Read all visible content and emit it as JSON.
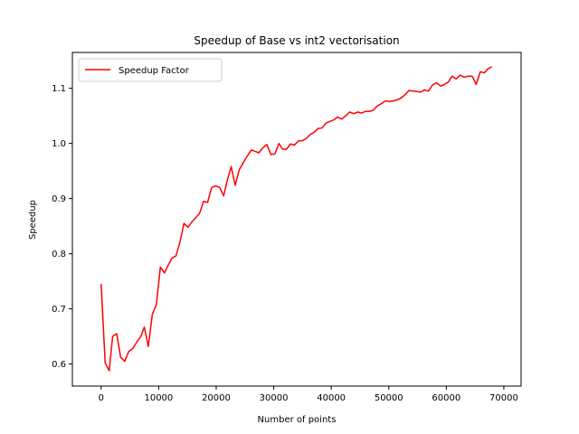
{
  "chart_data": {
    "type": "line",
    "title": "Speedup of Base vs int2 vectorisation",
    "xlabel": "Number of points",
    "ylabel": "Speedup",
    "xlim": [
      -5000,
      73000
    ],
    "ylim": [
      0.56,
      1.165
    ],
    "xticks": [
      0,
      10000,
      20000,
      30000,
      40000,
      50000,
      60000,
      70000
    ],
    "yticks": [
      0.6,
      0.7,
      0.8,
      0.9,
      1.0,
      1.1
    ],
    "ytick_labels": [
      "0.6",
      "0.7",
      "0.8",
      "0.9",
      "1.0",
      "1.1"
    ],
    "grid": false,
    "legend_position": "upper left",
    "series": [
      {
        "name": "Speedup Factor",
        "color": "#ff0000",
        "x": [
          0,
          700,
          1400,
          2000,
          2700,
          3400,
          4100,
          4800,
          5500,
          6200,
          6900,
          7500,
          8200,
          8900,
          9600,
          10300,
          11000,
          11700,
          12300,
          13000,
          13700,
          14400,
          15100,
          15800,
          16500,
          17100,
          17800,
          18500,
          19200,
          19900,
          20600,
          21300,
          21900,
          22600,
          23300,
          24000,
          24700,
          25400,
          26100,
          26700,
          27400,
          28100,
          28800,
          29500,
          30200,
          30900,
          31500,
          32200,
          32900,
          33600,
          34300,
          35000,
          35700,
          36300,
          37000,
          37700,
          38400,
          39100,
          39800,
          40500,
          41100,
          41800,
          42500,
          43200,
          43900,
          44600,
          45300,
          45900,
          46600,
          47300,
          48000,
          48700,
          49400,
          50100,
          50800,
          51400,
          52100,
          52800,
          53500,
          54200,
          54900,
          55500,
          56200,
          56900,
          57600,
          58300,
          59000,
          59700,
          60400,
          61000,
          61700,
          62400,
          63100,
          63800,
          64500,
          65200,
          65900,
          66600,
          67200,
          67900
        ],
        "y": [
          0.745,
          0.602,
          0.588,
          0.65,
          0.655,
          0.612,
          0.605,
          0.623,
          0.628,
          0.64,
          0.65,
          0.667,
          0.632,
          0.69,
          0.708,
          0.776,
          0.765,
          0.78,
          0.792,
          0.796,
          0.821,
          0.855,
          0.848,
          0.858,
          0.866,
          0.873,
          0.895,
          0.893,
          0.92,
          0.923,
          0.92,
          0.905,
          0.932,
          0.958,
          0.924,
          0.952,
          0.965,
          0.977,
          0.988,
          0.986,
          0.983,
          0.992,
          0.998,
          0.98,
          0.981,
          1.0,
          0.99,
          0.989,
          0.999,
          0.997,
          1.005,
          1.005,
          1.009,
          1.016,
          1.02,
          1.027,
          1.028,
          1.037,
          1.04,
          1.043,
          1.048,
          1.044,
          1.05,
          1.057,
          1.054,
          1.057,
          1.055,
          1.058,
          1.058,
          1.06,
          1.068,
          1.072,
          1.077,
          1.076,
          1.077,
          1.079,
          1.082,
          1.088,
          1.096,
          1.095,
          1.094,
          1.093,
          1.097,
          1.095,
          1.106,
          1.11,
          1.104,
          1.107,
          1.112,
          1.122,
          1.117,
          1.124,
          1.12,
          1.122,
          1.122,
          1.107,
          1.13,
          1.128,
          1.135,
          1.139
        ]
      }
    ]
  }
}
